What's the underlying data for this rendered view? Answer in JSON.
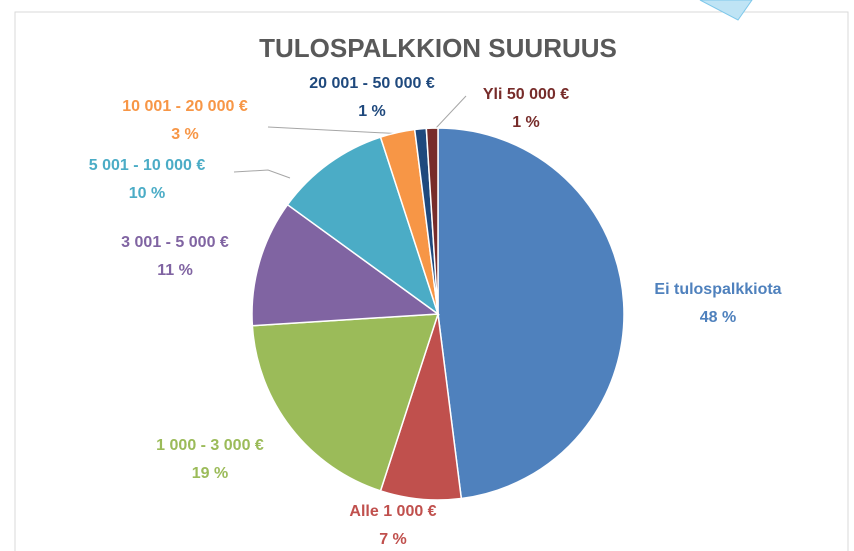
{
  "chart_data": {
    "type": "pie",
    "title": "TULOSPALKKION SUURUUS",
    "categories": [
      "Ei tulospalkkiota",
      "Alle 1 000 €",
      "1 000 - 3 000 €",
      "3 001 - 5 000 €",
      "5 001 - 10 000 €",
      "10 001 - 20 000 €",
      "20 001 - 50 000 €",
      "Yli 50 000 €"
    ],
    "values": [
      48,
      7,
      19,
      11,
      10,
      3,
      1,
      1
    ],
    "value_labels": [
      "48 %",
      "7 %",
      "19 %",
      "11 %",
      "10 %",
      "3 %",
      "1 %",
      "1 %"
    ],
    "colors": [
      "#4f81bd",
      "#c0504d",
      "#9bbb59",
      "#8064a2",
      "#4bacc6",
      "#f79646",
      "#1f497d",
      "#772c2a"
    ]
  }
}
